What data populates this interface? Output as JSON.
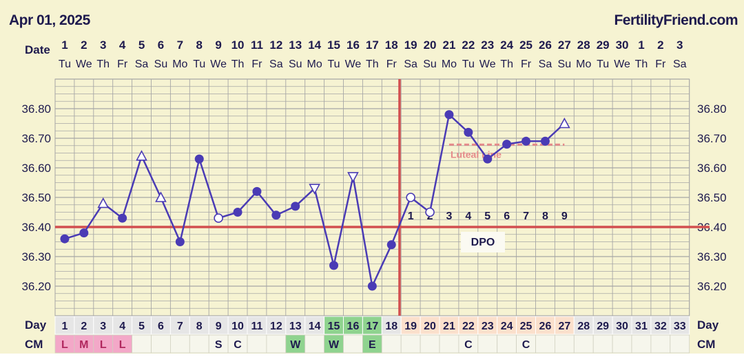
{
  "header": {
    "date": "Apr 01, 2025",
    "site": "FertilityFriend.com",
    "date_row_label": "Date",
    "day_row_label": "Day",
    "cm_row_label": "CM",
    "dpo_label": "DPO",
    "luteal_label": "Luteal Line"
  },
  "colors": {
    "background": "#f6f3d2",
    "grid": "#a6a6a6",
    "series": "#4a3bb5",
    "coverline": "#d24f4f",
    "ovulation_line": "#d24f4f",
    "luteal_line": "#e58a8a",
    "text": "#1e1a4e",
    "day_cell_default": "#e6e6e6",
    "day_cell_fertile": "#8fd38f",
    "day_cell_luteal": "#fbe0cc",
    "cm_cell_menses": "#f3a8c8",
    "cm_cell_fertile": "#8fd38f",
    "cm_cell_default": "#f6f6ec"
  },
  "chart_data": {
    "type": "line",
    "date_numbers": [
      "1",
      "2",
      "3",
      "4",
      "5",
      "6",
      "7",
      "8",
      "9",
      "10",
      "11",
      "12",
      "13",
      "14",
      "15",
      "16",
      "17",
      "18",
      "19",
      "20",
      "21",
      "22",
      "23",
      "24",
      "25",
      "26",
      "27",
      "28",
      "29",
      "30",
      "1",
      "2",
      "3"
    ],
    "weekdays": [
      "Tu",
      "We",
      "Th",
      "Fr",
      "Sa",
      "Su",
      "Mo",
      "Tu",
      "We",
      "Th",
      "Fr",
      "Sa",
      "Su",
      "Mo",
      "Tu",
      "We",
      "Th",
      "Fr",
      "Sa",
      "Su",
      "Mo",
      "Tu",
      "We",
      "Th",
      "Fr",
      "Sa",
      "Su",
      "Mo",
      "Tu",
      "We",
      "Th",
      "Fr",
      "Sa"
    ],
    "cycle_days": [
      "1",
      "2",
      "3",
      "4",
      "5",
      "6",
      "7",
      "8",
      "9",
      "10",
      "11",
      "12",
      "13",
      "14",
      "15",
      "16",
      "17",
      "18",
      "19",
      "20",
      "21",
      "22",
      "23",
      "24",
      "25",
      "26",
      "27",
      "28",
      "29",
      "30",
      "31",
      "32",
      "33"
    ],
    "cm": [
      "L",
      "M",
      "L",
      "L",
      "",
      "",
      "",
      "",
      "S",
      "C",
      "",
      "",
      "W",
      "",
      "W",
      "",
      "E",
      "",
      "",
      "",
      "",
      "C",
      "",
      "",
      "C",
      "",
      "",
      "",
      "",
      "",
      "",
      "",
      ""
    ],
    "day_cell_type": [
      "default",
      "default",
      "default",
      "default",
      "default",
      "default",
      "default",
      "default",
      "default",
      "default",
      "default",
      "default",
      "default",
      "default",
      "fertile",
      "fertile",
      "fertile",
      "default",
      "luteal",
      "luteal",
      "luteal",
      "luteal",
      "luteal",
      "luteal",
      "luteal",
      "luteal",
      "luteal",
      "default",
      "default",
      "default",
      "default",
      "default",
      "default"
    ],
    "cm_cell_type": [
      "menses",
      "menses",
      "menses",
      "menses",
      "default",
      "default",
      "default",
      "default",
      "default",
      "default",
      "default",
      "default",
      "fertile",
      "default",
      "fertile",
      "default",
      "fertile",
      "default",
      "default",
      "default",
      "default",
      "default",
      "default",
      "default",
      "default",
      "default",
      "default",
      "default",
      "default",
      "default",
      "default",
      "default",
      "default"
    ],
    "series": [
      {
        "days": [
          1,
          2,
          3,
          4,
          5,
          6,
          7,
          8,
          9,
          10,
          11,
          12,
          13,
          14,
          15,
          16,
          17,
          18,
          19,
          20,
          21,
          22,
          23,
          24,
          25,
          26,
          27
        ],
        "values": [
          36.36,
          36.38,
          36.48,
          36.43,
          36.64,
          36.5,
          36.35,
          36.63,
          36.43,
          36.45,
          36.52,
          36.44,
          36.47,
          36.53,
          36.27,
          36.57,
          36.2,
          36.34,
          36.5,
          36.45,
          36.78,
          36.72,
          36.63,
          36.68,
          36.69,
          36.69,
          36.75
        ],
        "markers": [
          "dot",
          "dot",
          "triangle-up",
          "dot",
          "triangle-up",
          "triangle-up",
          "dot",
          "dot",
          "circle-open",
          "dot",
          "dot",
          "dot",
          "dot",
          "triangle-down",
          "dot",
          "triangle-down",
          "dot",
          "dot",
          "circle-open",
          "circle-open",
          "dot",
          "dot",
          "dot",
          "dot",
          "dot",
          "dot",
          "triangle-up"
        ]
      }
    ],
    "y_ticks": [
      "36.20",
      "36.30",
      "36.40",
      "36.50",
      "36.60",
      "36.70",
      "36.80"
    ],
    "ylim": [
      36.1,
      36.9
    ],
    "coverline": 36.4,
    "ovulation_day": 18,
    "luteal_line": {
      "value": 36.69,
      "start_day": 21,
      "end_day": 27
    },
    "dpo_numbers": [
      "1",
      "2",
      "3",
      "4",
      "5",
      "6",
      "7",
      "8",
      "9"
    ],
    "dpo_start_day": 19,
    "grid": true,
    "title": "",
    "xlabel": "",
    "ylabel": ""
  }
}
